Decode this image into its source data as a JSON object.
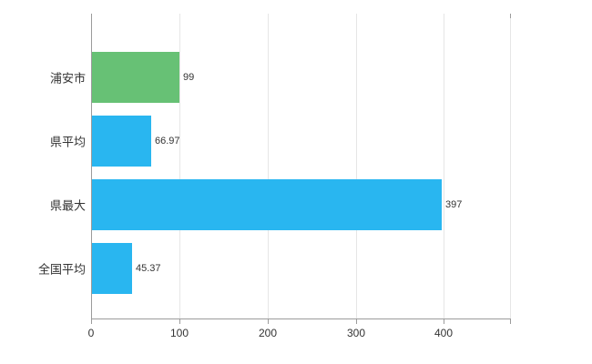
{
  "chart_data": {
    "type": "bar",
    "orientation": "horizontal",
    "title": "",
    "xlabel": "",
    "ylabel": "",
    "categories": [
      "浦安市",
      "県平均",
      "県最大",
      "全国平均"
    ],
    "values": [
      99,
      66.97,
      397,
      45.37
    ],
    "value_labels": [
      "99",
      "66.97",
      "397",
      "45.37"
    ],
    "bar_colors": [
      "#67c175",
      "#29b6f0",
      "#29b6f0",
      "#29b6f0"
    ],
    "x_ticks": [
      0,
      100,
      200,
      300,
      400
    ],
    "x_tick_labels": [
      "0",
      "100",
      "200",
      "300",
      "400"
    ],
    "xlim": [
      0,
      475
    ],
    "grid": true,
    "legend": false,
    "background": "#ffffff",
    "colors": {
      "gridline": "#e6e6e6",
      "axis": "#9b9b9b",
      "text": "#333333"
    }
  }
}
